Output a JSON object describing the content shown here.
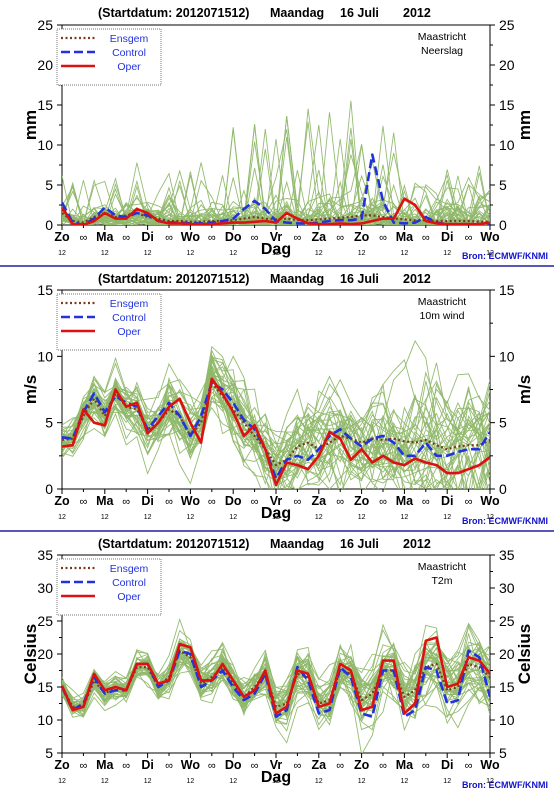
{
  "header": {
    "title_prefix": "(Startdatum: 2012071512)",
    "title_day": "Maandag",
    "title_date": "16 Juli",
    "title_year": "2012"
  },
  "legend": {
    "ensgem": "Ensgem",
    "control": "Control",
    "oper": "Oper"
  },
  "source": "Bron: ECMWF/KNMI",
  "xaxis": {
    "label": "Dag",
    "day_labels": [
      "Zo",
      "Ma",
      "Di",
      "Wo",
      "Do",
      "Vr",
      "Za",
      "Zo",
      "Ma",
      "Di",
      "Wo"
    ],
    "midday_symbol": "∞",
    "hour_label": "12"
  },
  "colors": {
    "ensgem": "#7a3b1e",
    "control": "#2233dd",
    "oper": "#dd1111",
    "members": "#8fb86a",
    "panel_border": "#22229a",
    "text": "#000000",
    "source": "#1111cc"
  },
  "chart_data": [
    {
      "type": "line",
      "location_label": "Maastricht",
      "variable_label": "Neerslag",
      "ylabel": "mm",
      "ylim": [
        0,
        25
      ],
      "yticks": [
        0,
        5,
        10,
        15,
        20,
        25
      ],
      "x_unit": "hours since Zo 12:00",
      "x": [
        0,
        6,
        12,
        18,
        24,
        30,
        36,
        42,
        48,
        54,
        60,
        66,
        72,
        78,
        84,
        90,
        96,
        102,
        108,
        114,
        120,
        126,
        132,
        138,
        144,
        150,
        156,
        162,
        168,
        174,
        180,
        186,
        192,
        198,
        204,
        210,
        216,
        222,
        228,
        234,
        240
      ],
      "series": [
        {
          "name": "Ensgem",
          "values": [
            1.5,
            0.5,
            0.3,
            1.0,
            1.5,
            1.0,
            1.2,
            1.5,
            1.0,
            0.8,
            0.5,
            0.5,
            0.4,
            0.4,
            0.5,
            0.5,
            0.6,
            0.8,
            1.0,
            0.8,
            0.7,
            0.8,
            0.6,
            0.6,
            0.7,
            0.8,
            0.9,
            1.0,
            1.2,
            1.2,
            1.0,
            0.8,
            0.7,
            0.6,
            0.6,
            0.5,
            0.5,
            0.5,
            0.5,
            0.4,
            0.4
          ]
        },
        {
          "name": "Control",
          "values": [
            2.8,
            0.3,
            0,
            0.8,
            2.2,
            1.2,
            1.0,
            1.5,
            1.2,
            0.5,
            0.3,
            0.3,
            0.2,
            0.2,
            0.3,
            0.5,
            0.8,
            2.0,
            3.0,
            2.0,
            0.5,
            0.3,
            0.2,
            0.2,
            0.3,
            0.5,
            0.6,
            0.6,
            0.8,
            8.8,
            3.0,
            0.3,
            0.2,
            0.3,
            1.0,
            0.3,
            0.1,
            0.1,
            0.1,
            0.1,
            0.1
          ]
        },
        {
          "name": "Oper",
          "values": [
            2.2,
            0.1,
            0,
            0.5,
            1.5,
            0.8,
            0.8,
            2.0,
            1.5,
            0.5,
            0.2,
            0.2,
            0.1,
            0.1,
            0.1,
            0.2,
            0.3,
            0.3,
            0.4,
            0.5,
            0.3,
            1.5,
            0.8,
            0.2,
            0.1,
            0.1,
            0.2,
            0.1,
            0.2,
            0.5,
            0.8,
            0.8,
            3.3,
            2.5,
            0.5,
            0.2,
            0.1,
            0.1,
            0.1,
            0.1,
            0.3
          ]
        }
      ]
    },
    {
      "type": "line",
      "location_label": "Maastricht",
      "variable_label": "10m wind",
      "ylabel": "m/s",
      "ylim": [
        0,
        15
      ],
      "yticks": [
        0,
        5,
        10,
        15
      ],
      "x_unit": "hours since Zo 12:00",
      "x": [
        0,
        6,
        12,
        18,
        24,
        30,
        36,
        42,
        48,
        54,
        60,
        66,
        72,
        78,
        84,
        90,
        96,
        102,
        108,
        114,
        120,
        126,
        132,
        138,
        144,
        150,
        156,
        162,
        168,
        174,
        180,
        186,
        192,
        198,
        204,
        210,
        216,
        222,
        228,
        234,
        240
      ],
      "series": [
        {
          "name": "Ensgem",
          "values": [
            3.7,
            3.8,
            5.5,
            6.8,
            5.5,
            7.2,
            6.2,
            6.0,
            4.5,
            5.0,
            6.0,
            5.5,
            4.0,
            5.0,
            8.0,
            7.0,
            6.0,
            5.0,
            4.0,
            3.0,
            1.8,
            2.2,
            3.2,
            3.5,
            3.0,
            3.5,
            4.0,
            3.8,
            3.5,
            3.8,
            3.7,
            3.8,
            3.6,
            3.5,
            3.7,
            3.3,
            3.0,
            3.2,
            3.3,
            3.3,
            3.7
          ]
        },
        {
          "name": "Control",
          "values": [
            3.9,
            3.8,
            5.8,
            7.2,
            5.8,
            7.0,
            6.5,
            6.2,
            4.5,
            5.5,
            6.5,
            5.5,
            4.0,
            5.5,
            8.0,
            7.5,
            6.5,
            5.2,
            4.5,
            3.0,
            0.8,
            2.2,
            2.5,
            2.2,
            3.0,
            4.0,
            4.5,
            3.8,
            3.2,
            3.8,
            4.0,
            3.5,
            2.5,
            2.5,
            3.5,
            2.5,
            2.5,
            2.8,
            3.0,
            3.0,
            4.3
          ]
        },
        {
          "name": "Oper",
          "values": [
            3.2,
            3.3,
            6.0,
            5.0,
            4.8,
            7.5,
            6.2,
            6.5,
            4.2,
            5.0,
            6.2,
            6.8,
            5.0,
            3.5,
            8.3,
            7.2,
            5.8,
            4.0,
            4.8,
            3.0,
            0.3,
            2.0,
            1.8,
            1.5,
            2.5,
            4.3,
            3.8,
            2.2,
            3.0,
            2.0,
            2.5,
            2.0,
            1.8,
            2.3,
            2.0,
            1.8,
            1.2,
            1.2,
            1.5,
            1.8,
            2.4
          ]
        }
      ]
    },
    {
      "type": "line",
      "location_label": "Maastricht",
      "variable_label": "T2m",
      "ylabel": "Celsius",
      "ylim": [
        5,
        35
      ],
      "yticks": [
        5,
        10,
        15,
        20,
        25,
        30,
        35
      ],
      "x_unit": "hours since Zo 12:00",
      "x": [
        0,
        6,
        12,
        18,
        24,
        30,
        36,
        42,
        48,
        54,
        60,
        66,
        72,
        78,
        84,
        90,
        96,
        102,
        108,
        114,
        120,
        126,
        132,
        138,
        144,
        150,
        156,
        162,
        168,
        174,
        180,
        186,
        192,
        198,
        204,
        210,
        216,
        222,
        228,
        234,
        240
      ],
      "series": [
        {
          "name": "Ensgem",
          "values": [
            15.0,
            12.0,
            12.0,
            16.0,
            14.0,
            15.0,
            14.5,
            18.0,
            18.0,
            15.0,
            16.5,
            20.5,
            19.5,
            15.5,
            16.5,
            18.0,
            15.5,
            13.5,
            15.0,
            17.0,
            12.0,
            12.5,
            17.0,
            16.5,
            12.5,
            13.0,
            17.5,
            17.0,
            13.0,
            14.0,
            17.5,
            17.5,
            13.5,
            14.5,
            18.0,
            18.5,
            14.5,
            15.0,
            18.5,
            18.0,
            16.5
          ]
        },
        {
          "name": "Control",
          "values": [
            15.0,
            11.5,
            12.5,
            16.5,
            14.0,
            14.5,
            14.5,
            18.5,
            18.5,
            15.0,
            16.0,
            20.5,
            20.0,
            15.0,
            16.0,
            17.5,
            15.0,
            13.0,
            14.0,
            17.0,
            10.5,
            11.5,
            18.0,
            16.0,
            11.0,
            11.5,
            18.0,
            16.5,
            11.0,
            10.5,
            17.5,
            17.5,
            10.5,
            11.5,
            18.0,
            17.5,
            12.5,
            13.0,
            20.5,
            19.5,
            13.5
          ]
        },
        {
          "name": "Oper",
          "values": [
            15.2,
            11.5,
            12.0,
            17.0,
            14.5,
            15.0,
            14.5,
            18.5,
            18.5,
            15.5,
            16.0,
            21.5,
            21.0,
            16.0,
            16.0,
            18.5,
            16.0,
            13.5,
            14.5,
            17.5,
            11.0,
            12.0,
            17.5,
            17.0,
            12.0,
            12.5,
            18.5,
            17.5,
            11.5,
            12.0,
            19.0,
            19.0,
            11.0,
            12.5,
            22.0,
            22.5,
            15.0,
            15.5,
            19.5,
            19.0,
            17.0
          ]
        }
      ]
    }
  ]
}
